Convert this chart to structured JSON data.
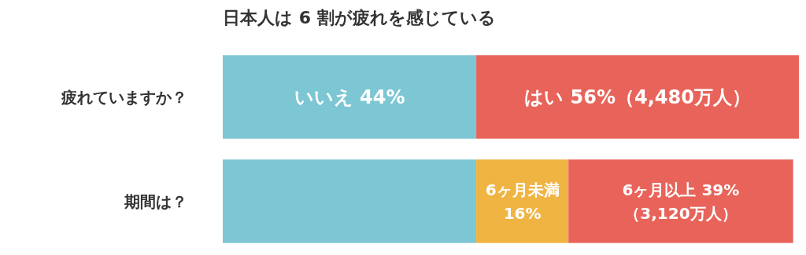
{
  "chart_data": {
    "type": "bar",
    "orientation": "horizontal",
    "stacked": true,
    "title": "日本人は 6 割が疲れを感じている",
    "categories": [
      "疲れていますか？",
      "期間は？"
    ],
    "series": [
      {
        "color": "#7dc6d3",
        "values": [
          44,
          44
        ],
        "value_labels": [
          "いいえ 44%",
          null
        ]
      },
      {
        "color": "#f0b443",
        "values": [
          null,
          16
        ],
        "value_labels": [
          null,
          "6ヶ月未満\n16%"
        ]
      },
      {
        "color": "#e8645a",
        "values": [
          56,
          39
        ],
        "value_labels": [
          "はい 56%（4,480万人）",
          "6ヶ月以上 39%\n（3,120万人）"
        ]
      }
    ],
    "xlim": [
      0,
      100
    ],
    "tick_labels": "y"
  }
}
